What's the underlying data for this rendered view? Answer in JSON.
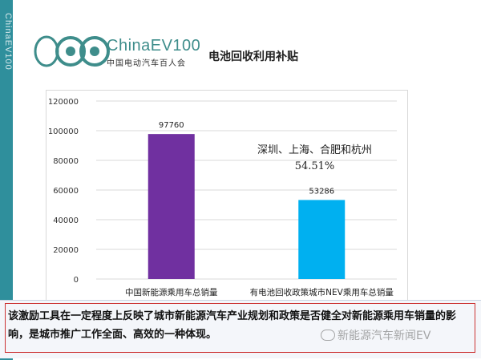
{
  "side_text": "ChinaEV100",
  "brand": {
    "name": "ChinaEV100",
    "subtitle": "中国电动汽车百人会"
  },
  "title": "电池回收利用补贴",
  "annotation": {
    "line1": "深圳、上海、合肥和杭州",
    "line2": "54.51%"
  },
  "bottom": {
    "text": "该激励工具在一定程度上反映了城市新能源汽车产业规划和政策是否健全对新能源乘用车销量的影响，是城市推广工作全面、高效的一种体现。"
  },
  "watermark": "新能源汽车新闻EV",
  "colors": {
    "brand_teal": "#3e8d8b",
    "bar1": "#7030a0",
    "bar2": "#00b0f0",
    "strip": "#2f8f9c"
  },
  "chart_data": {
    "type": "bar",
    "categories": [
      "中国新能源乘用车总销量",
      "有电池回收政策城市NEV乘用车总销量"
    ],
    "values": [
      97760,
      53286
    ],
    "value_labels": [
      "97760",
      "53286"
    ],
    "bar_colors": [
      "#7030a0",
      "#00b0f0"
    ],
    "ylim": [
      0,
      120000
    ],
    "yticks": [
      0,
      20000,
      40000,
      60000,
      80000,
      100000,
      120000
    ],
    "ytick_labels": [
      "0",
      "20000",
      "40000",
      "60000",
      "80000",
      "100000",
      "120000"
    ],
    "grid": true,
    "legend": "none"
  }
}
